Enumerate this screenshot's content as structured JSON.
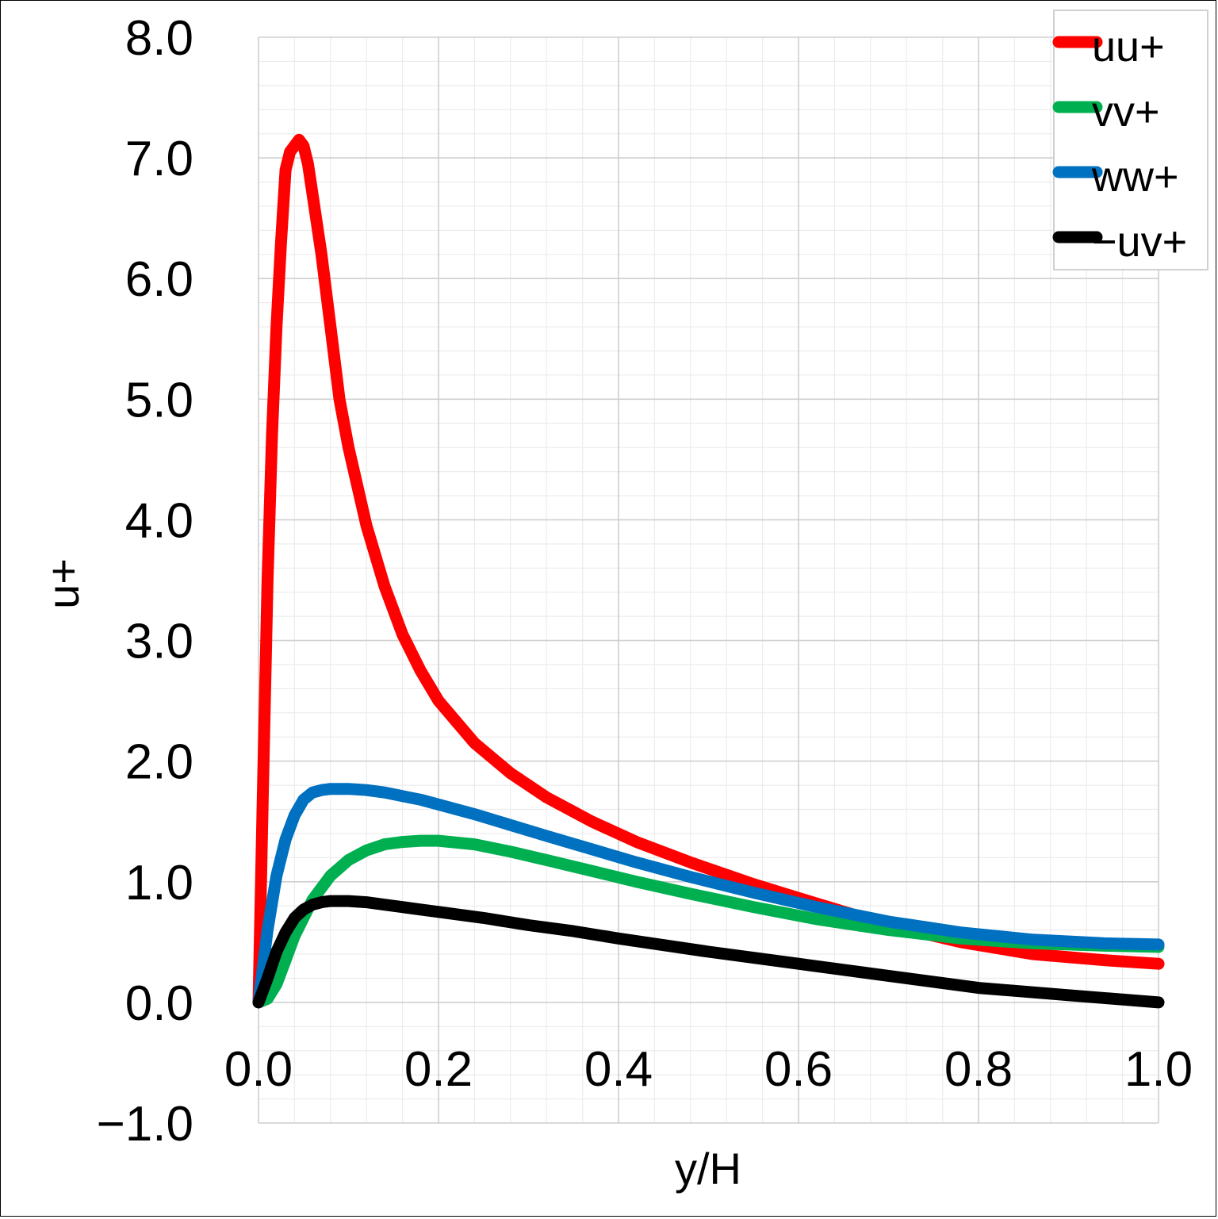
{
  "chart_data": {
    "type": "line",
    "xlabel": "y/H",
    "ylabel": "u+",
    "xlim": [
      0.0,
      1.0
    ],
    "ylim": [
      -1.0,
      8.0
    ],
    "x_ticks": [
      "0.0",
      "0.2",
      "0.4",
      "0.6",
      "0.8",
      "1.0"
    ],
    "y_ticks": [
      "-1.0",
      "0.0",
      "1.0",
      "2.0",
      "3.0",
      "4.0",
      "5.0",
      "6.0",
      "7.0",
      "8.0"
    ],
    "y_tick_negative_label": "−1.0",
    "negative_tick_color": "#ff0000",
    "grid": true,
    "legend_position": "top-right",
    "series": [
      {
        "name": "uu+",
        "color": "#ff0000",
        "x": [
          0.0,
          0.005,
          0.01,
          0.015,
          0.02,
          0.025,
          0.03,
          0.035,
          0.04,
          0.045,
          0.05,
          0.055,
          0.06,
          0.07,
          0.08,
          0.09,
          0.1,
          0.12,
          0.14,
          0.16,
          0.18,
          0.2,
          0.24,
          0.28,
          0.32,
          0.37,
          0.42,
          0.48,
          0.55,
          0.62,
          0.7,
          0.78,
          0.86,
          0.94,
          1.0
        ],
        "values": [
          0.0,
          1.8,
          3.5,
          4.7,
          5.6,
          6.3,
          6.9,
          7.05,
          7.1,
          7.15,
          7.1,
          6.95,
          6.7,
          6.2,
          5.6,
          5.0,
          4.6,
          3.95,
          3.45,
          3.05,
          2.75,
          2.5,
          2.15,
          1.9,
          1.7,
          1.5,
          1.33,
          1.16,
          0.98,
          0.82,
          0.64,
          0.5,
          0.4,
          0.35,
          0.32
        ]
      },
      {
        "name": "vv+",
        "color": "#00b050",
        "x": [
          0.0,
          0.01,
          0.02,
          0.03,
          0.04,
          0.06,
          0.08,
          0.1,
          0.12,
          0.14,
          0.16,
          0.18,
          0.2,
          0.24,
          0.28,
          0.32,
          0.37,
          0.42,
          0.48,
          0.55,
          0.62,
          0.7,
          0.78,
          0.86,
          0.94,
          1.0
        ],
        "values": [
          0.0,
          0.03,
          0.15,
          0.35,
          0.55,
          0.85,
          1.05,
          1.18,
          1.26,
          1.31,
          1.33,
          1.34,
          1.34,
          1.31,
          1.25,
          1.18,
          1.09,
          1.0,
          0.9,
          0.79,
          0.69,
          0.6,
          0.53,
          0.49,
          0.47,
          0.46
        ]
      },
      {
        "name": "ww+",
        "color": "#0070c0",
        "x": [
          0.0,
          0.01,
          0.02,
          0.03,
          0.04,
          0.05,
          0.06,
          0.07,
          0.08,
          0.1,
          0.12,
          0.14,
          0.16,
          0.18,
          0.2,
          0.24,
          0.28,
          0.32,
          0.37,
          0.42,
          0.48,
          0.55,
          0.62,
          0.7,
          0.78,
          0.86,
          0.94,
          1.0
        ],
        "values": [
          0.0,
          0.6,
          1.05,
          1.35,
          1.55,
          1.68,
          1.74,
          1.76,
          1.77,
          1.77,
          1.76,
          1.74,
          1.71,
          1.68,
          1.64,
          1.56,
          1.47,
          1.38,
          1.27,
          1.16,
          1.04,
          0.91,
          0.79,
          0.67,
          0.58,
          0.52,
          0.49,
          0.48
        ]
      },
      {
        "name": "−uv+",
        "color": "#000000",
        "x": [
          0.0,
          0.01,
          0.02,
          0.03,
          0.04,
          0.05,
          0.06,
          0.07,
          0.08,
          0.09,
          0.1,
          0.12,
          0.14,
          0.16,
          0.18,
          0.2,
          0.25,
          0.3,
          0.35,
          0.4,
          0.5,
          0.6,
          0.7,
          0.8,
          0.9,
          1.0
        ],
        "values": [
          0.0,
          0.2,
          0.42,
          0.58,
          0.7,
          0.77,
          0.81,
          0.83,
          0.84,
          0.84,
          0.84,
          0.83,
          0.81,
          0.79,
          0.77,
          0.75,
          0.7,
          0.64,
          0.59,
          0.53,
          0.42,
          0.32,
          0.22,
          0.12,
          0.06,
          0.0
        ]
      }
    ]
  }
}
